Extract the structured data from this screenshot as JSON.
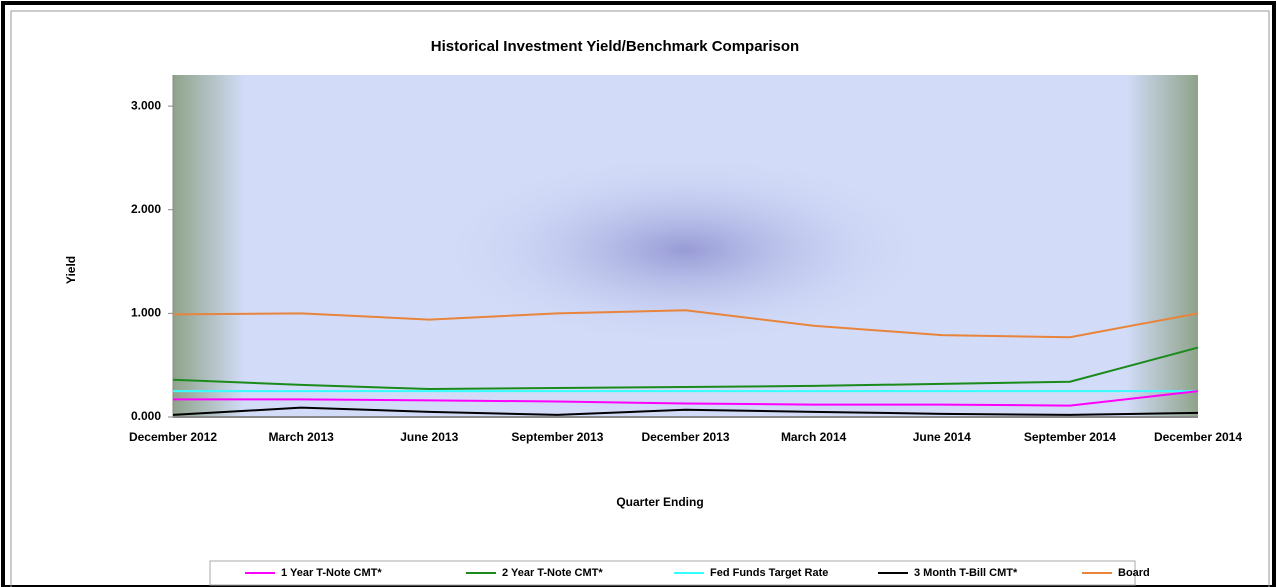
{
  "chart_data": {
    "type": "line",
    "title": "Historical Investment Yield/Benchmark Comparison",
    "x_label": "Quarter Ending",
    "y_label": "Yield",
    "categories": [
      "December 2012",
      "March 2013",
      "June 2013",
      "September 2013",
      "December 2013",
      "March 2014",
      "June 2014",
      "September 2014",
      "December 2014"
    ],
    "series": [
      {
        "name": "1 Year T-Note CMT*",
        "color": "#ff00ff",
        "values": [
          0.17,
          0.17,
          0.16,
          0.15,
          0.13,
          0.12,
          0.12,
          0.11,
          0.25
        ]
      },
      {
        "name": "2 Year T-Note CMT*",
        "color": "#1a8a1a",
        "values": [
          0.36,
          0.31,
          0.27,
          0.28,
          0.29,
          0.3,
          0.32,
          0.34,
          0.67
        ]
      },
      {
        "name": "Fed Funds Target Rate",
        "color": "#33ffff",
        "values": [
          0.25,
          0.25,
          0.25,
          0.25,
          0.25,
          0.25,
          0.25,
          0.25,
          0.25
        ]
      },
      {
        "name": "3 Month T-Bill CMT*",
        "color": "#000000",
        "values": [
          0.02,
          0.09,
          0.05,
          0.02,
          0.07,
          0.05,
          0.03,
          0.02,
          0.04
        ]
      },
      {
        "name": "Board",
        "color": "#e8843c",
        "values": [
          0.99,
          1.0,
          0.94,
          1.0,
          1.03,
          0.88,
          0.79,
          0.77,
          1.0
        ]
      }
    ],
    "ylim": [
      0,
      3.3
    ],
    "yticks": [
      {
        "value": 0,
        "label": "0.000"
      },
      {
        "value": 1,
        "label": "1.000"
      },
      {
        "value": 2,
        "label": "2.000"
      },
      {
        "value": 3,
        "label": "3.000"
      }
    ]
  }
}
